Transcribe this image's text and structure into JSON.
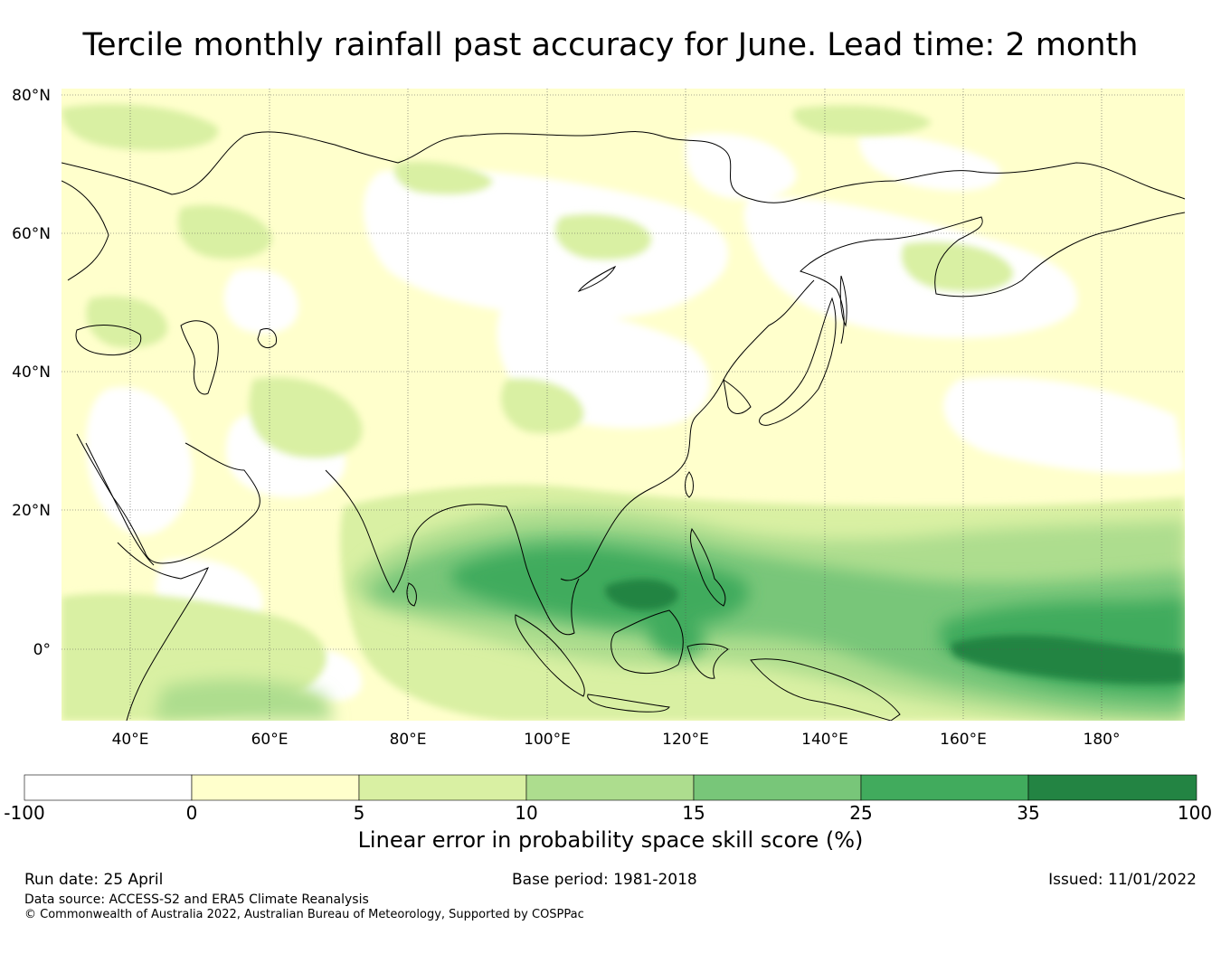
{
  "title": "Tercile monthly rainfall past accuracy for June. Lead time: 2 month",
  "map": {
    "lat_ticks": [
      "80°N",
      "60°N",
      "40°N",
      "20°N",
      "0°"
    ],
    "lon_ticks": [
      "40°E",
      "60°E",
      "80°E",
      "100°E",
      "120°E",
      "140°E",
      "160°E",
      "180°"
    ],
    "extent": {
      "lon_min": 30,
      "lon_max": 192,
      "lat_min": -10,
      "lat_max": 81
    }
  },
  "colorbar": {
    "title": "Linear error in probability space skill score (%)",
    "bounds": [
      "-100",
      "0",
      "5",
      "10",
      "15",
      "25",
      "35",
      "100"
    ],
    "colors": [
      "#ffffff",
      "#ffffcc",
      "#d9f0a3",
      "#addd8e",
      "#78c679",
      "#41ab5d",
      "#238443"
    ]
  },
  "footer": {
    "run_date": "Run date: 25 April",
    "base_period": "Base period: 1981-2018",
    "issued": "Issued: 11/01/2022",
    "data_source": "Data source: ACCESS-S2 and ERA5 Climate Reanalysis",
    "copyright": "© Commonwealth of Australia 2022, Australian Bureau of Meteorology, Supported by COSPPac"
  }
}
